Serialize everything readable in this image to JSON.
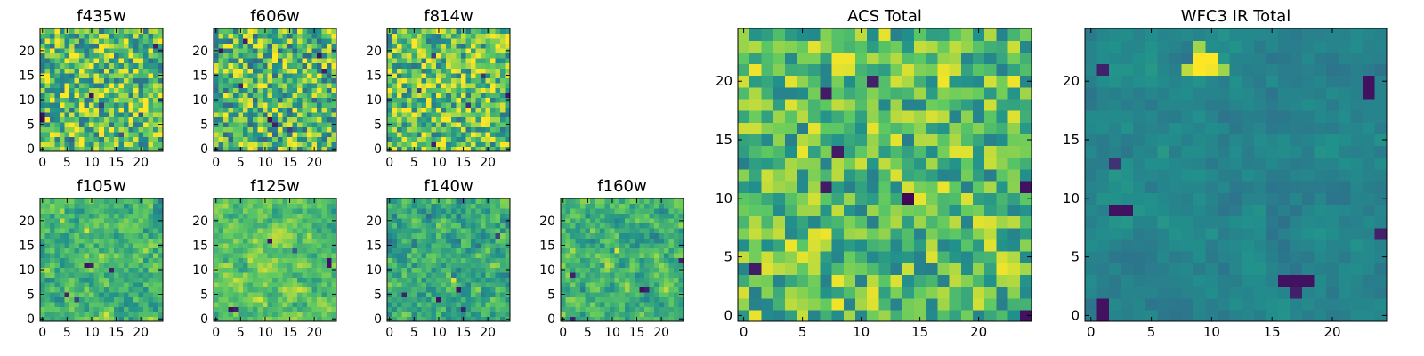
{
  "figure": {
    "background": "#ffffff",
    "colormap": "viridis",
    "colormap_stops": [
      "#440154",
      "#3b528b",
      "#21918c",
      "#5ec962",
      "#fde725"
    ]
  },
  "chart_data": [
    {
      "type": "heatmap",
      "title": "f435w",
      "grid_size": 25,
      "xlim": [
        0,
        24
      ],
      "ylim": [
        0,
        24
      ],
      "xticks": [
        "0",
        "5",
        "10",
        "15",
        "20"
      ],
      "yticks": [
        "0",
        "5",
        "10",
        "15",
        "20"
      ],
      "value_range": [
        0,
        1
      ],
      "mean_level": 0.72,
      "noise": 0.35,
      "smoothing": 0,
      "seed": 11,
      "features": [
        {
          "x": 0,
          "y": 6,
          "value": 0.02
        },
        {
          "x": 0,
          "y": 7,
          "value": 0.05
        },
        {
          "x": 10,
          "y": 11,
          "value": 0.05
        },
        {
          "x": 12,
          "y": 9,
          "value": 0.2
        },
        {
          "x": 23,
          "y": 21,
          "value": 0.1
        },
        {
          "x": 16,
          "y": 3,
          "value": 0.25
        },
        {
          "x": 6,
          "y": 2,
          "value": 0.3
        },
        {
          "x": 20,
          "y": 7,
          "value": 0.25
        }
      ]
    },
    {
      "type": "heatmap",
      "title": "f606w",
      "grid_size": 25,
      "xlim": [
        0,
        24
      ],
      "ylim": [
        0,
        24
      ],
      "xticks": [
        "0",
        "5",
        "10",
        "15",
        "20"
      ],
      "yticks": [
        "0",
        "5",
        "10",
        "15",
        "20"
      ],
      "value_range": [
        0,
        1
      ],
      "mean_level": 0.68,
      "noise": 0.35,
      "smoothing": 0,
      "seed": 23,
      "features": [
        {
          "x": 1,
          "y": 20,
          "value": 0.05
        },
        {
          "x": 5,
          "y": 13,
          "value": 0.1
        },
        {
          "x": 6,
          "y": 22,
          "value": 0.1
        },
        {
          "x": 11,
          "y": 6,
          "value": 0.05
        },
        {
          "x": 12,
          "y": 5,
          "value": 0.1
        },
        {
          "x": 21,
          "y": 19,
          "value": 0.05
        },
        {
          "x": 22,
          "y": 16,
          "value": 0.1
        },
        {
          "x": 15,
          "y": 4,
          "value": 0.2
        }
      ]
    },
    {
      "type": "heatmap",
      "title": "f814w",
      "grid_size": 25,
      "xlim": [
        0,
        24
      ],
      "ylim": [
        0,
        24
      ],
      "xticks": [
        "0",
        "5",
        "10",
        "15",
        "20"
      ],
      "yticks": [
        "0",
        "5",
        "10",
        "15",
        "20"
      ],
      "value_range": [
        0,
        1
      ],
      "mean_level": 0.72,
      "noise": 0.33,
      "smoothing": 0,
      "seed": 37,
      "features": [
        {
          "x": 24,
          "y": 11,
          "value": 0.05
        },
        {
          "x": 9,
          "y": 1,
          "value": 0.1
        },
        {
          "x": 16,
          "y": 9,
          "value": 0.15
        },
        {
          "x": 6,
          "y": 12,
          "value": 0.2
        },
        {
          "x": 19,
          "y": 15,
          "value": 0.15
        },
        {
          "x": 9,
          "y": 19,
          "value": 0.2
        }
      ]
    },
    {
      "type": "heatmap",
      "title": "f105w",
      "grid_size": 25,
      "xlim": [
        0,
        24
      ],
      "ylim": [
        0,
        24
      ],
      "xticks": [
        "0",
        "5",
        "10",
        "15",
        "20"
      ],
      "yticks": [
        "0",
        "5",
        "10",
        "15",
        "20"
      ],
      "value_range": [
        0,
        1
      ],
      "mean_level": 0.66,
      "noise": 0.3,
      "smoothing": 1,
      "seed": 53,
      "features": [
        {
          "x": 9,
          "y": 11,
          "value": 0.05
        },
        {
          "x": 10,
          "y": 11,
          "value": 0.1
        },
        {
          "x": 14,
          "y": 10,
          "value": 0.1
        },
        {
          "x": 5,
          "y": 5,
          "value": 0.1
        },
        {
          "x": 7,
          "y": 4,
          "value": 0.2
        },
        {
          "x": 9,
          "y": 18,
          "value": 0.95
        },
        {
          "x": 4,
          "y": 20,
          "value": 0.9
        }
      ]
    },
    {
      "type": "heatmap",
      "title": "f125w",
      "grid_size": 25,
      "xlim": [
        0,
        24
      ],
      "ylim": [
        0,
        24
      ],
      "xticks": [
        "0",
        "5",
        "10",
        "15",
        "20"
      ],
      "yticks": [
        "0",
        "5",
        "10",
        "15",
        "20"
      ],
      "value_range": [
        0,
        1
      ],
      "mean_level": 0.72,
      "noise": 0.28,
      "smoothing": 1,
      "seed": 71,
      "features": [
        {
          "x": 11,
          "y": 16,
          "value": 0.05
        },
        {
          "x": 3,
          "y": 2,
          "value": 0.05
        },
        {
          "x": 4,
          "y": 2,
          "value": 0.1
        },
        {
          "x": 23,
          "y": 11,
          "value": 0.05
        },
        {
          "x": 23,
          "y": 12,
          "value": 0.05
        },
        {
          "x": 16,
          "y": 14,
          "value": 0.3
        }
      ]
    },
    {
      "type": "heatmap",
      "title": "f140w",
      "grid_size": 25,
      "xlim": [
        0,
        24
      ],
      "ylim": [
        0,
        24
      ],
      "xticks": [
        "0",
        "5",
        "10",
        "15",
        "20"
      ],
      "yticks": [
        "0",
        "5",
        "10",
        "15",
        "20"
      ],
      "value_range": [
        0,
        1
      ],
      "mean_level": 0.62,
      "noise": 0.32,
      "smoothing": 1,
      "seed": 89,
      "features": [
        {
          "x": 10,
          "y": 4,
          "value": 0.05
        },
        {
          "x": 14,
          "y": 6,
          "value": 0.05
        },
        {
          "x": 3,
          "y": 5,
          "value": 0.1
        },
        {
          "x": 15,
          "y": 2,
          "value": 0.1
        },
        {
          "x": 22,
          "y": 17,
          "value": 0.2
        },
        {
          "x": 13,
          "y": 8,
          "value": 0.95
        }
      ]
    },
    {
      "type": "heatmap",
      "title": "f160w",
      "grid_size": 25,
      "xlim": [
        0,
        24
      ],
      "ylim": [
        0,
        24
      ],
      "xticks": [
        "0",
        "5",
        "10",
        "15",
        "20"
      ],
      "yticks": [
        "0",
        "5",
        "10",
        "15",
        "20"
      ],
      "value_range": [
        0,
        1
      ],
      "mean_level": 0.65,
      "noise": 0.3,
      "smoothing": 1,
      "seed": 97,
      "features": [
        {
          "x": 16,
          "y": 6,
          "value": 0.05
        },
        {
          "x": 17,
          "y": 6,
          "value": 0.1
        },
        {
          "x": 2,
          "y": 9,
          "value": 0.1
        },
        {
          "x": 2,
          "y": 0,
          "value": 0.1
        },
        {
          "x": 24,
          "y": 12,
          "value": 0.1
        },
        {
          "x": 11,
          "y": 14,
          "value": 0.95
        }
      ]
    },
    {
      "type": "heatmap",
      "title": "ACS Total",
      "grid_size": 25,
      "xlim": [
        0,
        24
      ],
      "ylim": [
        0,
        24
      ],
      "xticks": [
        "0",
        "5",
        "10",
        "15",
        "20"
      ],
      "yticks": [
        "0",
        "5",
        "10",
        "15",
        "20"
      ],
      "value_range": [
        0,
        1
      ],
      "mean_level": 0.7,
      "noise": 0.28,
      "smoothing": 0,
      "seed": 131,
      "features": [
        {
          "x": 14,
          "y": 10,
          "value": 0.02
        },
        {
          "x": 24,
          "y": 11,
          "value": 0.05
        },
        {
          "x": 7,
          "y": 11,
          "value": 0.08
        },
        {
          "x": 8,
          "y": 14,
          "value": 0.08
        },
        {
          "x": 1,
          "y": 4,
          "value": 0.08
        },
        {
          "x": 11,
          "y": 20,
          "value": 0.1
        },
        {
          "x": 7,
          "y": 19,
          "value": 0.08
        },
        {
          "x": 24,
          "y": 0,
          "value": 0.05
        },
        {
          "x": 9,
          "y": 22,
          "value": 0.98
        },
        {
          "x": 8,
          "y": 22,
          "value": 0.98
        },
        {
          "x": 8,
          "y": 21,
          "value": 0.96
        },
        {
          "x": 9,
          "y": 21,
          "value": 0.95
        }
      ]
    },
    {
      "type": "heatmap",
      "title": "WFC3 IR Total",
      "grid_size": 25,
      "xlim": [
        0,
        24
      ],
      "ylim": [
        0,
        24
      ],
      "xticks": [
        "0",
        "5",
        "10",
        "15",
        "20"
      ],
      "yticks": [
        "0",
        "5",
        "10",
        "15",
        "20"
      ],
      "value_range": [
        0,
        1
      ],
      "mean_level": 0.45,
      "noise": 0.1,
      "smoothing": 1,
      "seed": 151,
      "features": [
        {
          "x": 9,
          "y": 22,
          "value": 1.0
        },
        {
          "x": 10,
          "y": 22,
          "value": 1.0
        },
        {
          "x": 9,
          "y": 21,
          "value": 1.0
        },
        {
          "x": 10,
          "y": 21,
          "value": 0.98
        },
        {
          "x": 8,
          "y": 21,
          "value": 0.9
        },
        {
          "x": 11,
          "y": 21,
          "value": 0.85
        },
        {
          "x": 9,
          "y": 23,
          "value": 0.85
        },
        {
          "x": 1,
          "y": 0,
          "value": 0.05
        },
        {
          "x": 1,
          "y": 1,
          "value": 0.05
        },
        {
          "x": 16,
          "y": 3,
          "value": 0.05
        },
        {
          "x": 17,
          "y": 3,
          "value": 0.05
        },
        {
          "x": 18,
          "y": 3,
          "value": 0.05
        },
        {
          "x": 17,
          "y": 2,
          "value": 0.1
        },
        {
          "x": 2,
          "y": 9,
          "value": 0.05
        },
        {
          "x": 3,
          "y": 9,
          "value": 0.05
        },
        {
          "x": 23,
          "y": 19,
          "value": 0.05
        },
        {
          "x": 23,
          "y": 20,
          "value": 0.05
        },
        {
          "x": 24,
          "y": 7,
          "value": 0.1
        },
        {
          "x": 1,
          "y": 21,
          "value": 0.1
        },
        {
          "x": 2,
          "y": 13,
          "value": 0.15
        }
      ]
    }
  ]
}
